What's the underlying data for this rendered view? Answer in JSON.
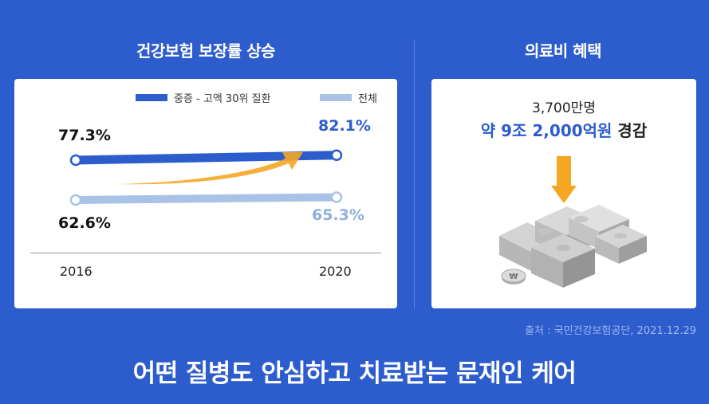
{
  "left_title": "건강보험 보장률 상승",
  "right_title": "의료비 혜택",
  "chart_data": {
    "type": "line",
    "x": [
      "2016",
      "2020"
    ],
    "series": [
      {
        "name": "중증 - 고액 30위 질환",
        "values": [
          77.3,
          82.1
        ],
        "labels": [
          "77.3%",
          "82.1%"
        ],
        "color": "#2d5ccd"
      },
      {
        "name": "전체",
        "values": [
          62.6,
          65.3
        ],
        "labels": [
          "62.6%",
          "65.3%"
        ],
        "color": "#a9c3e6"
      }
    ],
    "legend_position": "top-right",
    "grid": false,
    "accent_arrow_color": "#f5a623"
  },
  "benefit": {
    "people": "3,700만명",
    "amount": "약 9조 2,000억원",
    "suffix": " 경감"
  },
  "source": "출처 : 국민건강보험공단, 2021.12.29",
  "tagline": "어떤 질병도 안심하고 치료받는 문재인 케어"
}
